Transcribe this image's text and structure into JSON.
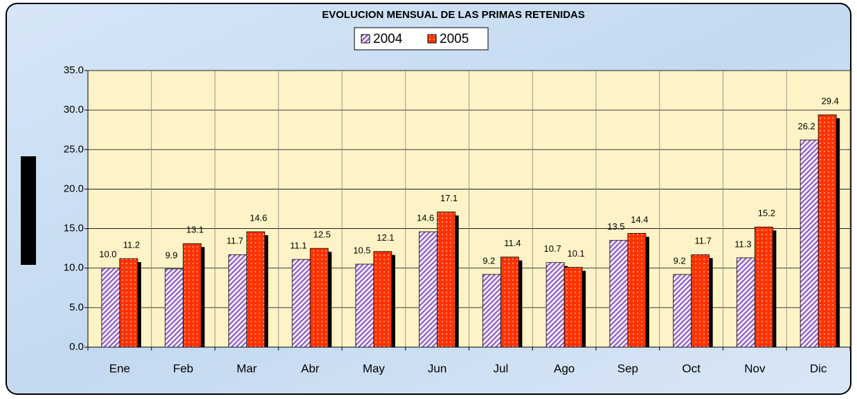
{
  "chart_data": {
    "type": "bar",
    "title": "EVOLUCION MENSUAL DE LAS PRIMAS RETENIDAS",
    "categories": [
      "Ene",
      "Feb",
      "Mar",
      "Abr",
      "May",
      "Jun",
      "Jul",
      "Ago",
      "Sep",
      "Oct",
      "Nov",
      "Dic"
    ],
    "series": [
      {
        "name": "2004",
        "color": "#b07fd0",
        "values": [
          10,
          9.9,
          11.7,
          11.1,
          10.5,
          14.6,
          9.2,
          10.7,
          13.5,
          9.2,
          11.3,
          26.2
        ],
        "value_labels": [
          "10.0",
          "9.9",
          "11.7",
          "11.1",
          "10.5",
          "14.6",
          "9.2",
          "10.7",
          "13.5",
          "9.2",
          "11.3",
          "26.2"
        ]
      },
      {
        "name": "2005",
        "color": "#ff3300",
        "values": [
          11.2,
          13.1,
          14.6,
          12.5,
          12.1,
          17.1,
          11.4,
          10.1,
          14.4,
          11.7,
          15.2,
          29.4
        ],
        "value_labels": [
          "11.2",
          "13.1",
          "14.6",
          "12.5",
          "12.1",
          "17.1",
          "11.4",
          "10.1",
          "14.4",
          "11.7",
          "15.2",
          "29.4"
        ]
      }
    ],
    "ylim": [
      0,
      35
    ],
    "yticks": [
      {
        "value": 0,
        "label": "0.0"
      },
      {
        "value": 5,
        "label": "5.0"
      },
      {
        "value": 10,
        "label": "10.0"
      },
      {
        "value": 15,
        "label": "15.0"
      },
      {
        "value": 20,
        "label": "20.0"
      },
      {
        "value": 25,
        "label": "25.0"
      },
      {
        "value": 30,
        "label": "30.0"
      },
      {
        "value": 35,
        "label": "35.0"
      }
    ],
    "grid": true,
    "legend": "top"
  }
}
